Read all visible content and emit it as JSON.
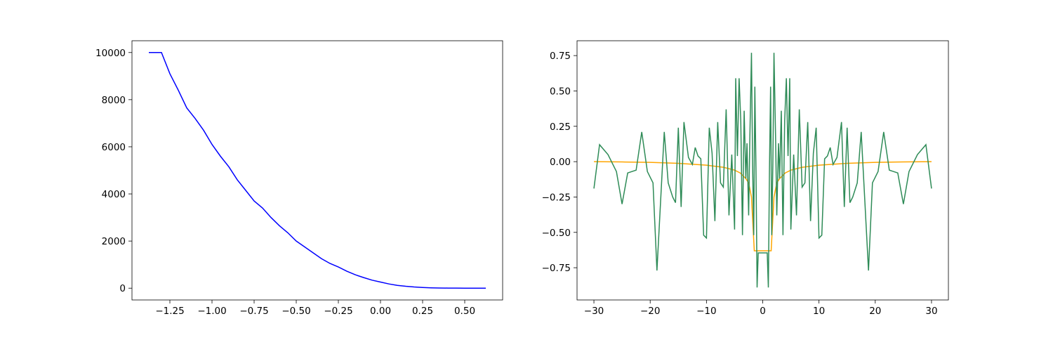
{
  "chart_data": [
    {
      "type": "line",
      "xlim": [
        -1.475,
        0.725
      ],
      "ylim": [
        -500,
        10500
      ],
      "xticks": [
        {
          "value": -1.25,
          "label": "−1.25"
        },
        {
          "value": -1.0,
          "label": "−1.00"
        },
        {
          "value": -0.75,
          "label": "−0.75"
        },
        {
          "value": -0.5,
          "label": "−0.50"
        },
        {
          "value": -0.25,
          "label": "−0.25"
        },
        {
          "value": 0,
          "label": "0.00"
        },
        {
          "value": 0.25,
          "label": "0.25"
        },
        {
          "value": 0.5,
          "label": "0.50"
        }
      ],
      "yticks": [
        0,
        2000,
        4000,
        6000,
        8000,
        10000
      ],
      "series": [
        {
          "color": "#0000ff",
          "x": [
            -1.375,
            -1.35,
            -1.3,
            -1.25,
            -1.2,
            -1.15,
            -1.1,
            -1.05,
            -1.0,
            -0.95,
            -0.9,
            -0.85,
            -0.8,
            -0.75,
            -0.7,
            -0.65,
            -0.6,
            -0.55,
            -0.5,
            -0.45,
            -0.4,
            -0.35,
            -0.3,
            -0.25,
            -0.2,
            -0.15,
            -0.1,
            -0.05,
            0.0,
            0.05,
            0.1,
            0.15,
            0.2,
            0.25,
            0.3,
            0.35,
            0.4,
            0.45,
            0.5,
            0.55,
            0.6,
            0.625
          ],
          "values": [
            10000,
            10000,
            10000,
            9100,
            8400,
            7650,
            7200,
            6700,
            6100,
            5600,
            5150,
            4600,
            4150,
            3700,
            3400,
            3000,
            2650,
            2350,
            2000,
            1750,
            1500,
            1250,
            1050,
            900,
            720,
            570,
            450,
            340,
            260,
            180,
            120,
            80,
            50,
            30,
            15,
            8,
            4,
            2,
            1,
            0,
            0,
            0
          ]
        }
      ]
    },
    {
      "type": "line",
      "xlim": [
        -33,
        33
      ],
      "ylim": [
        -0.978,
        0.855
      ],
      "xticks": [
        {
          "value": -30,
          "label": "−30"
        },
        {
          "value": -20,
          "label": "−20"
        },
        {
          "value": -10,
          "label": "−10"
        },
        0,
        10,
        20,
        30
      ],
      "yticks": [
        {
          "value": -0.75,
          "label": "−0.75"
        },
        {
          "value": -0.5,
          "label": "−0.50"
        },
        {
          "value": -0.25,
          "label": "−0.25"
        },
        {
          "value": 0,
          "label": "0.00"
        },
        {
          "value": 0.25,
          "label": "0.25"
        },
        {
          "value": 0.5,
          "label": "0.50"
        },
        {
          "value": 0.75,
          "label": "0.75"
        }
      ],
      "series": [
        {
          "color": "#ffa500",
          "x": [
            -30,
            -25,
            -20,
            -15,
            -10,
            -7,
            -5,
            -4,
            -3,
            -2.5,
            -2,
            -1.5,
            0,
            1.5,
            2,
            2.5,
            3,
            4,
            5,
            7,
            10,
            15,
            20,
            25,
            30
          ],
          "values": [
            0,
            -0.002,
            -0.005,
            -0.012,
            -0.025,
            -0.04,
            -0.06,
            -0.08,
            -0.12,
            -0.15,
            -0.25,
            -0.63,
            -0.63,
            -0.63,
            -0.25,
            -0.15,
            -0.12,
            -0.08,
            -0.06,
            -0.04,
            -0.025,
            -0.012,
            -0.005,
            -0.002,
            0
          ]
        },
        {
          "color": "#2e8b57",
          "x": [
            -30,
            -29,
            -27.5,
            -26,
            -25,
            -24,
            -22.5,
            -21.5,
            -20.5,
            -19.5,
            -18.8,
            -17.5,
            -16.8,
            -16,
            -15.5,
            -15,
            -14.5,
            -14,
            -13.2,
            -12.5,
            -12,
            -11.5,
            -11,
            -10.5,
            -10,
            -9.5,
            -9,
            -8.5,
            -8,
            -7.5,
            -7,
            -6.5,
            -6,
            -5.5,
            -5,
            -4.8,
            -4.5,
            -4.2,
            -3.9,
            -3.6,
            -3.3,
            -3,
            -2.8,
            -2.5,
            -2.3,
            -2,
            -1.8,
            -1.6,
            -1.4,
            -1.2,
            -1,
            -0.8,
            0,
            0.8,
            1,
            1.2,
            1.4,
            1.6,
            1.8,
            2,
            2.3,
            2.5,
            2.8,
            3,
            3.3,
            3.6,
            3.9,
            4.2,
            4.5,
            4.8,
            5,
            5.5,
            6,
            6.5,
            7,
            7.5,
            8,
            8.5,
            9,
            9.5,
            10,
            10.5,
            11,
            11.5,
            12,
            12.5,
            13.2,
            14,
            14.5,
            15,
            15.5,
            16,
            16.8,
            17.5,
            18.8,
            19.5,
            20.5,
            21.5,
            22.5,
            24,
            25,
            26,
            27.5,
            29,
            30
          ],
          "values": [
            -0.19,
            0.12,
            0.05,
            -0.07,
            -0.3,
            -0.08,
            -0.06,
            0.21,
            -0.07,
            -0.15,
            -0.77,
            0.21,
            -0.15,
            -0.25,
            -0.29,
            0.24,
            -0.32,
            0.28,
            0.03,
            -0.02,
            0.1,
            0.04,
            0.02,
            -0.52,
            -0.54,
            0.24,
            0.06,
            -0.42,
            0.28,
            -0.15,
            -0.18,
            0.37,
            -0.38,
            0.05,
            -0.48,
            0.59,
            0.04,
            0.59,
            0.29,
            -0.52,
            0.36,
            -0.12,
            0.13,
            -0.38,
            0.14,
            0.77,
            -0.02,
            -0.52,
            0.53,
            -0.05,
            -0.89,
            -0.645,
            -0.645,
            -0.645,
            -0.89,
            -0.05,
            0.53,
            -0.52,
            -0.02,
            0.77,
            0.14,
            -0.38,
            0.13,
            -0.12,
            0.36,
            -0.52,
            0.29,
            0.59,
            0.04,
            0.59,
            -0.48,
            0.05,
            -0.38,
            0.37,
            -0.18,
            -0.15,
            0.28,
            -0.42,
            0.06,
            0.24,
            -0.54,
            -0.52,
            0.02,
            0.04,
            0.1,
            -0.02,
            0.03,
            0.28,
            -0.32,
            0.24,
            -0.29,
            -0.25,
            -0.15,
            0.21,
            -0.77,
            -0.15,
            -0.07,
            0.21,
            -0.06,
            -0.08,
            -0.3,
            -0.07,
            0.05,
            0.12,
            -0.19
          ]
        }
      ]
    }
  ]
}
